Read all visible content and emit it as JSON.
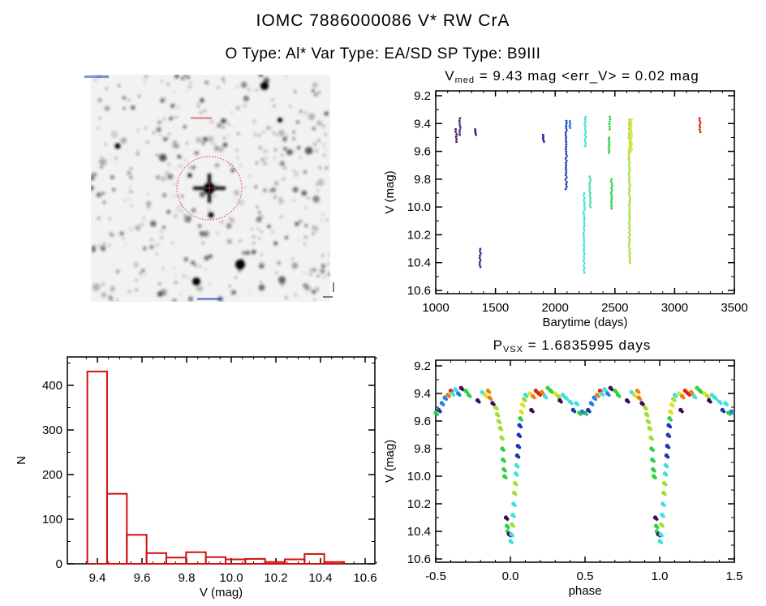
{
  "header": {
    "title": "IOMC 7886000086   V* RW CrA",
    "subtitle": "O Type: Al*   Var Type: EA/SD   SP Type: B9III"
  },
  "sky_image": {
    "description_labels_unreadable": true
  },
  "palette": {
    "purple": "#3c0a5a",
    "violet": "#4b1a8a",
    "indigo": "#2a2aa0",
    "blue": "#1a3ab0",
    "lblue": "#2a80e0",
    "cyan": "#40e0e0",
    "teal": "#40e0a0",
    "green": "#30d040",
    "lime": "#a0e030",
    "yellow": "#e0e020",
    "orange": "#f08010",
    "red": "#e02010",
    "hist": "#d01010"
  },
  "chart_data": [
    {
      "type": "bar",
      "name": "histogram",
      "xlabel": "V (mag)",
      "ylabel": "N",
      "xlim": [
        9.3,
        10.65
      ],
      "ylim": [
        0,
        450
      ],
      "xticks": [
        "9.4",
        "9.6",
        "9.8",
        "10.0",
        "10.2",
        "10.4",
        "10.6"
      ],
      "yticks": [
        "0",
        "100",
        "200",
        "300",
        "400"
      ],
      "bin_start": 9.355,
      "bin_width": 0.0885,
      "values": [
        431,
        157,
        65,
        24,
        14,
        26,
        15,
        10,
        11,
        4,
        10,
        22,
        4
      ]
    },
    {
      "type": "scatter",
      "name": "light-curve",
      "title_main": "V",
      "title_sub": "med",
      "title_rest": " = 9.43 mag <err_V> = 0.02 mag",
      "xlabel": "Barytime (days)",
      "ylabel": "V (mag)",
      "xlim": [
        1000,
        3500
      ],
      "ylim": [
        9.19,
        10.64
      ],
      "y_inverted": true,
      "xticks": [
        "1000",
        "1500",
        "2000",
        "2500",
        "3000",
        "3500"
      ],
      "yticks": [
        "9.2",
        "9.4",
        "9.6",
        "9.8",
        "10.0",
        "10.2",
        "10.4",
        "10.6"
      ],
      "groups": [
        {
          "t": 1170,
          "v": [
            9.44,
            9.53
          ],
          "color": "purple"
        },
        {
          "t": 1200,
          "v": [
            9.36,
            9.48
          ],
          "color": "violet"
        },
        {
          "t": 1330,
          "v": [
            9.44,
            9.48
          ],
          "color": "violet"
        },
        {
          "t": 1370,
          "v": [
            10.3,
            10.43
          ],
          "color": "violet"
        },
        {
          "t": 1900,
          "v": [
            9.48,
            9.53
          ],
          "color": "indigo"
        },
        {
          "t": 2090,
          "v": [
            9.38,
            9.87
          ],
          "color": "blue"
        },
        {
          "t": 2120,
          "v": [
            9.38,
            9.43
          ],
          "color": "lblue"
        },
        {
          "t": 2250,
          "v": [
            9.35,
            9.56
          ],
          "color": "cyan"
        },
        {
          "t": 2240,
          "v": [
            9.9,
            10.47
          ],
          "color": "cyan"
        },
        {
          "t": 2290,
          "v": [
            9.78,
            10.0
          ],
          "color": "teal"
        },
        {
          "t": 2455,
          "v": [
            9.35,
            9.44
          ],
          "color": "green"
        },
        {
          "t": 2450,
          "v": [
            9.5,
            9.61
          ],
          "color": "green"
        },
        {
          "t": 2470,
          "v": [
            9.8,
            10.01
          ],
          "color": "green"
        },
        {
          "t": 2620,
          "v": [
            9.37,
            10.4
          ],
          "color": "lime"
        },
        {
          "t": 2635,
          "v": [
            9.37,
            9.6
          ],
          "color": "yellow"
        },
        {
          "t": 3210,
          "v": [
            9.36,
            9.46
          ],
          "color": "red"
        }
      ]
    },
    {
      "type": "scatter",
      "name": "phased-light-curve",
      "title_main": "P",
      "title_sub": "VSX",
      "title_rest": " = 1.6835995 days",
      "xlabel": "phase",
      "ylabel": "V (mag)",
      "xlim": [
        -0.5,
        1.5
      ],
      "ylim": [
        9.19,
        10.64
      ],
      "y_inverted": true,
      "xticks": [
        "-0.5",
        "0.0",
        "0.5",
        "1.0",
        "1.5"
      ],
      "yticks": [
        "9.2",
        "9.4",
        "9.6",
        "9.8",
        "10.0",
        "10.2",
        "10.4",
        "10.6"
      ],
      "repeat_period": 1,
      "points": [
        [
          -0.5,
          9.54,
          "green"
        ],
        [
          -0.48,
          9.52,
          "blue"
        ],
        [
          -0.46,
          9.47,
          "lblue"
        ],
        [
          -0.44,
          9.43,
          "lblue"
        ],
        [
          -0.42,
          9.41,
          "orange"
        ],
        [
          -0.4,
          9.38,
          "red"
        ],
        [
          -0.39,
          9.4,
          "cyan"
        ],
        [
          -0.37,
          9.37,
          "cyan"
        ],
        [
          -0.35,
          9.4,
          "lblue"
        ],
        [
          -0.33,
          9.36,
          "purple"
        ],
        [
          -0.3,
          9.38,
          "green"
        ],
        [
          -0.28,
          9.41,
          "green"
        ],
        [
          -0.22,
          9.45,
          "purple"
        ],
        [
          -0.19,
          9.39,
          "cyan"
        ],
        [
          -0.17,
          9.41,
          "yellow"
        ],
        [
          -0.15,
          9.38,
          "orange"
        ],
        [
          -0.14,
          9.43,
          "orange"
        ],
        [
          -0.12,
          9.47,
          "purple"
        ],
        [
          -0.1,
          9.5,
          "lime"
        ],
        [
          -0.09,
          9.55,
          "lime"
        ],
        [
          -0.08,
          9.6,
          "lime"
        ],
        [
          -0.07,
          9.65,
          "lime"
        ],
        [
          -0.06,
          9.72,
          "lime"
        ],
        [
          -0.055,
          9.8,
          "green"
        ],
        [
          -0.05,
          9.88,
          "green"
        ],
        [
          -0.045,
          9.95,
          "green"
        ],
        [
          -0.04,
          10.0,
          "green"
        ],
        [
          -0.03,
          10.3,
          "purple"
        ],
        [
          -0.025,
          10.36,
          "green"
        ],
        [
          -0.02,
          10.4,
          "green"
        ],
        [
          -0.01,
          10.42,
          "purple"
        ],
        [
          0.0,
          10.47,
          "cyan"
        ],
        [
          0.005,
          10.42,
          "cyan"
        ],
        [
          0.01,
          10.35,
          "lime"
        ],
        [
          0.015,
          10.28,
          "cyan"
        ],
        [
          0.02,
          10.2,
          "cyan"
        ],
        [
          0.025,
          10.12,
          "lime"
        ],
        [
          0.03,
          10.05,
          "lime"
        ],
        [
          0.035,
          9.98,
          "cyan"
        ],
        [
          0.04,
          9.92,
          "cyan"
        ],
        [
          0.045,
          9.85,
          "blue"
        ],
        [
          0.05,
          9.78,
          "blue"
        ],
        [
          0.055,
          9.7,
          "blue"
        ],
        [
          0.06,
          9.63,
          "blue"
        ],
        [
          0.065,
          9.58,
          "green"
        ],
        [
          0.07,
          9.53,
          "yellow"
        ],
        [
          0.08,
          9.48,
          "yellow"
        ],
        [
          0.09,
          9.44,
          "lime"
        ],
        [
          0.1,
          9.41,
          "cyan"
        ],
        [
          0.13,
          9.4,
          "yellow"
        ],
        [
          0.14,
          9.52,
          "purple"
        ],
        [
          0.15,
          9.42,
          "orange"
        ],
        [
          0.17,
          9.38,
          "red"
        ],
        [
          0.19,
          9.4,
          "red"
        ],
        [
          0.21,
          9.39,
          "orange"
        ],
        [
          0.23,
          9.42,
          "cyan"
        ],
        [
          0.25,
          9.36,
          "green"
        ],
        [
          0.27,
          9.38,
          "green"
        ],
        [
          0.3,
          9.4,
          "yellow"
        ],
        [
          0.32,
          9.42,
          "lime"
        ],
        [
          0.33,
          9.45,
          "purple"
        ],
        [
          0.35,
          9.41,
          "cyan"
        ],
        [
          0.37,
          9.43,
          "cyan"
        ],
        [
          0.4,
          9.46,
          "cyan"
        ],
        [
          0.42,
          9.52,
          "blue"
        ],
        [
          0.44,
          9.47,
          "cyan"
        ],
        [
          0.46,
          9.54,
          "green"
        ],
        [
          0.48,
          9.53,
          "lblue"
        ]
      ]
    }
  ]
}
